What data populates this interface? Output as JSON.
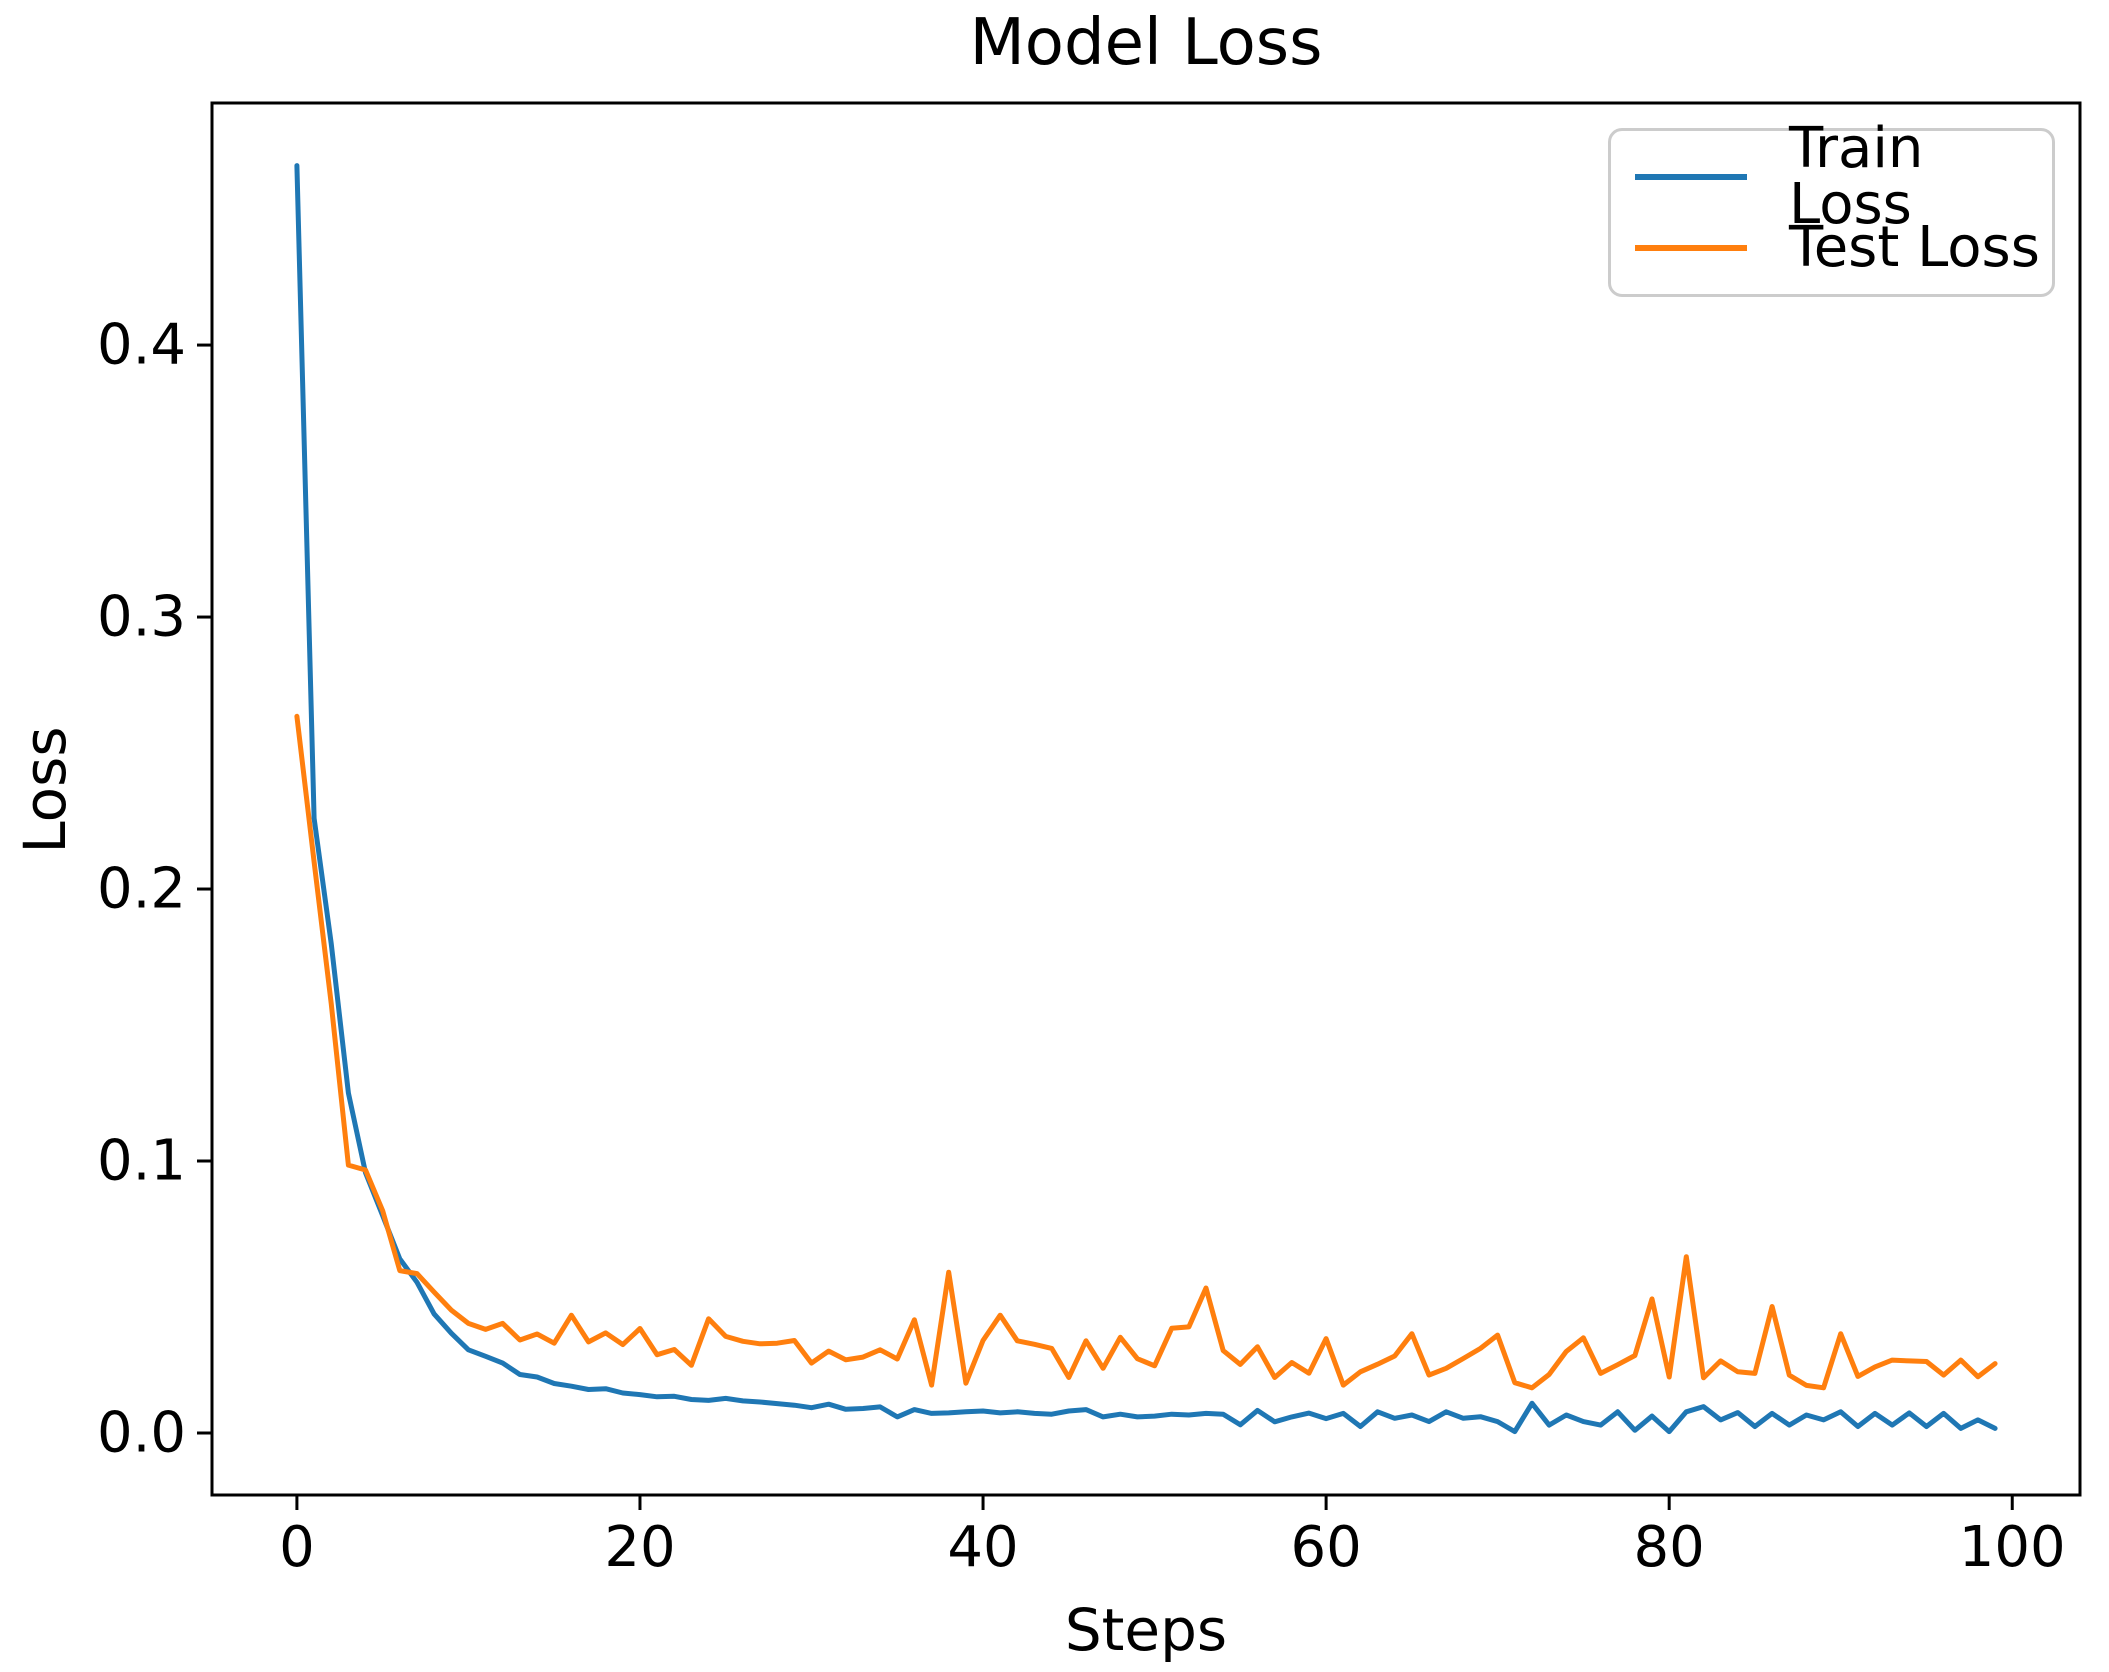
{
  "figure": {
    "title": "Model Loss",
    "xlabel": "Steps",
    "ylabel": "Loss",
    "background": "#ffffff",
    "text_color": "#000000"
  },
  "legend": {
    "position": "upper right",
    "items": [
      {
        "label": "Train Loss",
        "color": "#1f77b4"
      },
      {
        "label": "Test Loss",
        "color": "#ff7f0e"
      }
    ]
  },
  "chart_data": {
    "type": "line",
    "title": "Model Loss",
    "xlabel": "Steps",
    "ylabel": "Loss",
    "grid": false,
    "legend_position": "upper right",
    "x_range": [
      -4.95,
      103.95
    ],
    "y_range": [
      -0.0228,
      0.489
    ],
    "x_tick_values": [
      0,
      20,
      40,
      60,
      80,
      100
    ],
    "x_tick_labels": [
      "0",
      "20",
      "40",
      "60",
      "80",
      "100"
    ],
    "y_tick_values": [
      0.0,
      0.1,
      0.2,
      0.3,
      0.4
    ],
    "y_tick_labels": [
      "0.0",
      "0.1",
      "0.2",
      "0.3",
      "0.4"
    ],
    "x": [
      0,
      1,
      2,
      3,
      4,
      5,
      6,
      7,
      8,
      9,
      10,
      11,
      12,
      13,
      14,
      15,
      16,
      17,
      18,
      19,
      20,
      21,
      22,
      23,
      24,
      25,
      26,
      27,
      28,
      29,
      30,
      31,
      32,
      33,
      34,
      35,
      36,
      37,
      38,
      39,
      40,
      41,
      42,
      43,
      44,
      45,
      46,
      47,
      48,
      49,
      50,
      51,
      52,
      53,
      54,
      55,
      56,
      57,
      58,
      59,
      60,
      61,
      62,
      63,
      64,
      65,
      66,
      67,
      68,
      69,
      70,
      71,
      72,
      73,
      74,
      75,
      76,
      77,
      78,
      79,
      80,
      81,
      82,
      83,
      84,
      85,
      86,
      87,
      88,
      89,
      90,
      91,
      92,
      93,
      94,
      95,
      96,
      97,
      98,
      99
    ],
    "series": [
      {
        "name": "Train Loss",
        "color": "#1f77b4",
        "values": [
          0.466,
          0.226,
          0.18,
          0.125,
          0.0957,
          0.0799,
          0.064,
          0.0554,
          0.0438,
          0.0367,
          0.0306,
          0.0282,
          0.0257,
          0.0215,
          0.0206,
          0.0182,
          0.0172,
          0.016,
          0.0163,
          0.0147,
          0.0141,
          0.0133,
          0.0135,
          0.0123,
          0.012,
          0.0127,
          0.0118,
          0.0114,
          0.0108,
          0.0102,
          0.0093,
          0.0106,
          0.0087,
          0.009,
          0.0096,
          0.0059,
          0.0086,
          0.0072,
          0.0074,
          0.0078,
          0.0081,
          0.0074,
          0.0078,
          0.0072,
          0.0069,
          0.0081,
          0.0086,
          0.0059,
          0.0069,
          0.0059,
          0.0062,
          0.0069,
          0.0066,
          0.0072,
          0.0069,
          0.003,
          0.0083,
          0.0041,
          0.0059,
          0.0073,
          0.0053,
          0.0072,
          0.0024,
          0.0078,
          0.0054,
          0.0066,
          0.0042,
          0.0078,
          0.0054,
          0.006,
          0.0042,
          0.0005,
          0.0109,
          0.0029,
          0.0066,
          0.0042,
          0.0029,
          0.0078,
          0.001,
          0.0062,
          0.0005,
          0.0078,
          0.0097,
          0.0048,
          0.0075,
          0.0024,
          0.0072,
          0.0029,
          0.0066,
          0.0048,
          0.0078,
          0.0024,
          0.0072,
          0.0029,
          0.0074,
          0.0024,
          0.0072,
          0.0017,
          0.0048,
          0.0017
        ]
      },
      {
        "name": "Test Loss",
        "color": "#ff7f0e",
        "values": [
          0.2635,
          0.21,
          0.158,
          0.0985,
          0.0967,
          0.0817,
          0.0597,
          0.0586,
          0.0518,
          0.0452,
          0.0403,
          0.0381,
          0.0403,
          0.0342,
          0.0364,
          0.033,
          0.0433,
          0.0335,
          0.0368,
          0.0325,
          0.0384,
          0.0288,
          0.0307,
          0.0249,
          0.042,
          0.0355,
          0.0337,
          0.0328,
          0.033,
          0.034,
          0.0257,
          0.0301,
          0.0269,
          0.0279,
          0.0306,
          0.0272,
          0.0416,
          0.0176,
          0.0591,
          0.0183,
          0.034,
          0.0433,
          0.0339,
          0.0326,
          0.0311,
          0.0204,
          0.0339,
          0.0238,
          0.0352,
          0.0273,
          0.0247,
          0.0385,
          0.039,
          0.0533,
          0.0303,
          0.0252,
          0.0317,
          0.0204,
          0.0259,
          0.022,
          0.0347,
          0.0176,
          0.0225,
          0.0253,
          0.0283,
          0.0365,
          0.0213,
          0.0238,
          0.0274,
          0.0311,
          0.036,
          0.0185,
          0.0166,
          0.0215,
          0.03,
          0.035,
          0.0219,
          0.0251,
          0.0285,
          0.0493,
          0.0206,
          0.0648,
          0.0203,
          0.0265,
          0.0225,
          0.0219,
          0.0465,
          0.0213,
          0.0175,
          0.0166,
          0.0365,
          0.0208,
          0.0243,
          0.0268,
          0.0265,
          0.0263,
          0.0213,
          0.0268,
          0.0207,
          0.0255
        ]
      }
    ]
  }
}
